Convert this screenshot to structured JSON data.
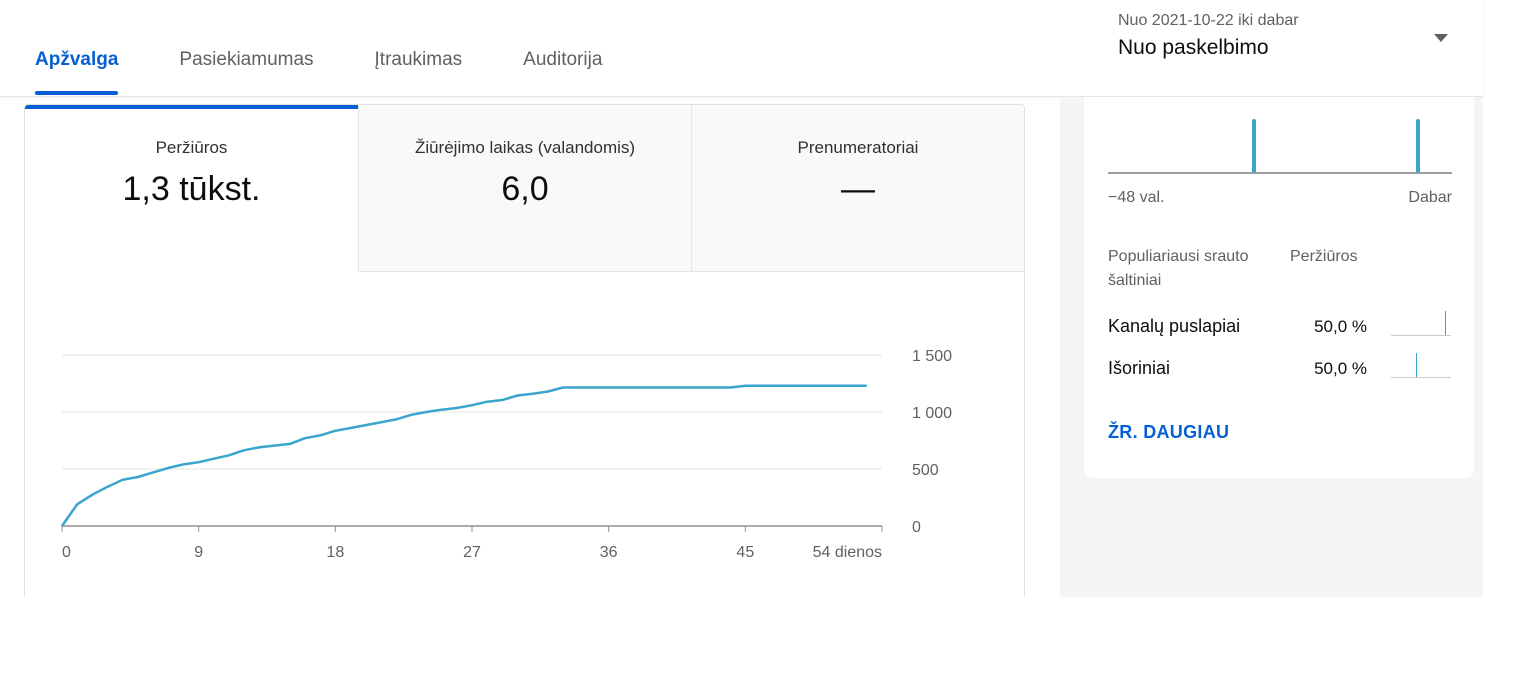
{
  "tabs": [
    {
      "label": "Apžvalga",
      "active": true
    },
    {
      "label": "Pasiekiamumas",
      "active": false
    },
    {
      "label": "Įtraukimas",
      "active": false
    },
    {
      "label": "Auditorija",
      "active": false
    }
  ],
  "date_range": {
    "subtitle": "Nuo 2021-10-22 iki dabar",
    "selected": "Nuo paskelbimo",
    "icon": "caret-down-icon"
  },
  "metrics": [
    {
      "label": "Peržiūros",
      "value": "1,3 tūkst.",
      "active": true
    },
    {
      "label": "Žiūrėjimo laikas (valandomis)",
      "value": "6,0",
      "active": false
    },
    {
      "label": "Prenumeratoriai",
      "value": "—",
      "active": false
    }
  ],
  "chart_data": {
    "type": "line",
    "x": [
      0,
      1,
      2,
      3,
      4,
      5,
      6,
      7,
      8,
      9,
      10,
      11,
      12,
      13,
      14,
      15,
      16,
      17,
      18,
      19,
      20,
      21,
      22,
      23,
      24,
      25,
      26,
      27,
      28,
      29,
      30,
      31,
      32,
      33,
      34,
      35,
      36,
      37,
      38,
      39,
      40,
      41,
      42,
      43,
      44,
      45,
      46,
      47,
      48,
      49,
      50,
      51,
      52,
      53
    ],
    "series": [
      {
        "values": [
          0,
          190,
          275,
          345,
          405,
          430,
          470,
          510,
          540,
          560,
          590,
          620,
          665,
          690,
          705,
          720,
          770,
          795,
          835,
          860,
          885,
          910,
          935,
          975,
          1000,
          1020,
          1035,
          1060,
          1090,
          1105,
          1145,
          1160,
          1180,
          1215,
          1215,
          1215,
          1215,
          1215,
          1215,
          1215,
          1215,
          1215,
          1215,
          1215,
          1215,
          1230,
          1230,
          1230,
          1230,
          1230,
          1230,
          1230,
          1230,
          1230
        ]
      }
    ],
    "x_ticks": [
      "0",
      "9",
      "18",
      "27",
      "36",
      "45",
      "54 dienos"
    ],
    "y_ticks": [
      "0",
      "500",
      "1 000",
      "1 500"
    ],
    "xlim": [
      0,
      54
    ],
    "ylim": [
      0,
      1500
    ],
    "grid": true,
    "color": "#3aa5cc"
  },
  "realtime": {
    "left_label": "−48 val.",
    "right_label": "Dabar"
  },
  "sources": {
    "header_name": "Populiariausi srauto šaltiniai",
    "header_value": "Peržiūros",
    "items": [
      {
        "name": "Kanalų puslapiai",
        "value": "50,0 %",
        "share": 0.5
      },
      {
        "name": "Išoriniai",
        "value": "50,0 %",
        "share": 0.5
      }
    ],
    "see_more": "ŽR. DAUGIAU"
  },
  "colors": {
    "accent": "#065fd4",
    "chart": "#3aa5cc"
  }
}
